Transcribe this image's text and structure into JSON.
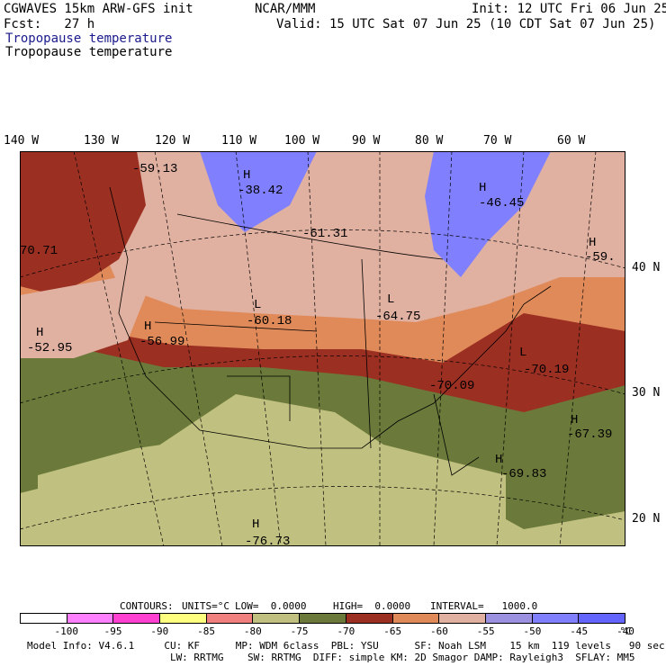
{
  "header": {
    "model_title": "CGWAVES 15km ARW-GFS init",
    "org": "NCAR/MMM",
    "init": "Init: 12 UTC Fri 06 Jun 25",
    "fcst": "Fcst:   27 h",
    "valid": "Valid: 15 UTC Sat 07 Jun 25 (10 CDT Sat 07 Jun 25)",
    "field_name_1": "Tropopause temperature",
    "field_name_2": "Tropopause temperature"
  },
  "longitude_labels": [
    "140 W",
    "130 W",
    "120 W",
    "110 W",
    "100 W",
    "90 W",
    "80 W",
    "70 W",
    "60 W"
  ],
  "latitude_labels": [
    "40 N",
    "30 N",
    "20 N"
  ],
  "map_labels": [
    {
      "letter": "H",
      "value": "-59.13"
    },
    {
      "letter": "H",
      "value": "-38.42"
    },
    {
      "letter": "",
      "value": "-61.31"
    },
    {
      "letter": "H",
      "value": "-46.45"
    },
    {
      "letter": "H",
      "value": "-59."
    },
    {
      "letter": "",
      "value": "70.71"
    },
    {
      "letter": "L",
      "value": "-60.18"
    },
    {
      "letter": "L",
      "value": "-64.75"
    },
    {
      "letter": "H",
      "value": "-52.95"
    },
    {
      "letter": "H",
      "value": "-56.99"
    },
    {
      "letter": "L",
      "value": "-70.19"
    },
    {
      "letter": "",
      "value": "-70.09"
    },
    {
      "letter": "H",
      "value": "-67.39"
    },
    {
      "letter": "H",
      "value": "-69.83"
    },
    {
      "letter": "H",
      "value": "-76.73"
    }
  ],
  "contours": {
    "label": "CONTOURS:",
    "units": "UNITS=°C",
    "low": "LOW=  0.0000",
    "high": "HIGH=  0.0000",
    "interval": "INTERVAL=   1000.0"
  },
  "colorbar": {
    "colors": [
      "#ffffff",
      "#ff80ff",
      "#ff40d0",
      "#ffff80",
      "#f08080",
      "#c0c080",
      "#6b7a3a",
      "#9b2f22",
      "#e08a5a",
      "#e0b0a0",
      "#9c90e0",
      "#8080ff",
      "#6464ff"
    ],
    "labels": [
      "-100",
      "-95",
      "-90",
      "-85",
      "-80",
      "-75",
      "-70",
      "-65",
      "-60",
      "-55",
      "-50",
      "-45",
      "-40"
    ],
    "unit": "°C"
  },
  "footer": {
    "line1": "Model Info: V4.6.1     CU: KF      MP: WDM 6class  PBL: YSU      SF: Noah LSM    15 km  119 levels   90 sec",
    "line2": "                        LW: RRTMG    SW: RRTMG  DIFF: simple KM: 2D Smagor DAMP: Rayleigh3  SFLAY: MM5"
  }
}
